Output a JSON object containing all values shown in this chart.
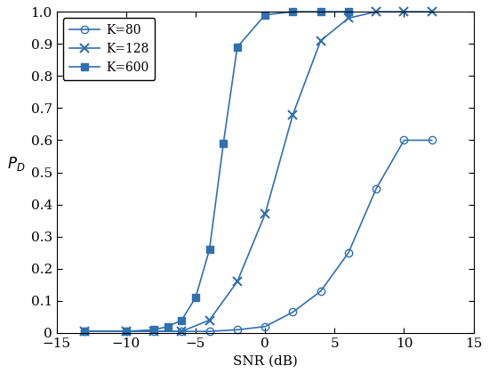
{
  "title": "",
  "xlabel": "SNR (dB)",
  "ylabel": "$P_D$",
  "xlim": [
    -15,
    15
  ],
  "ylim": [
    0,
    1
  ],
  "xticks": [
    -15,
    -10,
    -5,
    0,
    5,
    10,
    15
  ],
  "yticks": [
    0,
    0.1,
    0.2,
    0.3,
    0.4,
    0.5,
    0.6,
    0.7,
    0.8,
    0.9,
    1.0
  ],
  "line_color": "#3070B0",
  "series": [
    {
      "label": "K=80",
      "marker": "o",
      "markersize": 6,
      "fillstyle": "none",
      "x": [
        -13,
        -10,
        -8,
        -6,
        -4,
        -2,
        0,
        2,
        4,
        6,
        8,
        10,
        12
      ],
      "y": [
        0.005,
        0.005,
        0.005,
        0.005,
        0.005,
        0.01,
        0.02,
        0.065,
        0.13,
        0.25,
        0.45,
        0.6,
        0.6
      ]
    },
    {
      "label": "K=128",
      "marker": "x",
      "markersize": 7,
      "fillstyle": "full",
      "x": [
        -13,
        -10,
        -8,
        -6,
        -4,
        -2,
        0,
        2,
        4,
        6,
        8,
        10,
        12
      ],
      "y": [
        0.005,
        0.005,
        0.005,
        0.005,
        0.04,
        0.16,
        0.37,
        0.68,
        0.91,
        0.98,
        1.0,
        1.0,
        1.0
      ]
    },
    {
      "label": "K=600",
      "marker": "s",
      "markersize": 6,
      "fillstyle": "full",
      "x": [
        -13,
        -10,
        -8,
        -7,
        -6,
        -5,
        -4,
        -3,
        -2,
        0,
        2,
        4,
        6
      ],
      "y": [
        0.005,
        0.005,
        0.01,
        0.02,
        0.04,
        0.11,
        0.26,
        0.59,
        0.89,
        0.99,
        1.0,
        1.0,
        1.0
      ]
    }
  ]
}
